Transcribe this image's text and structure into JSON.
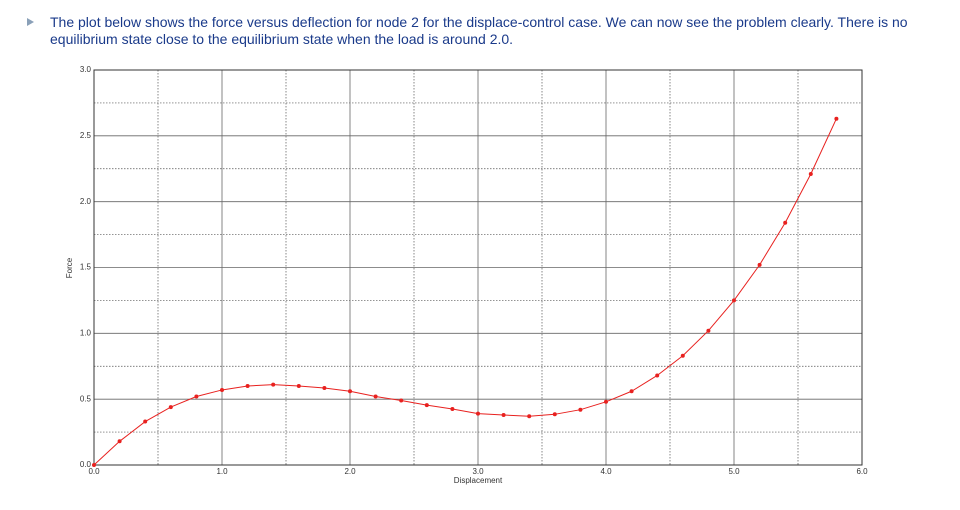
{
  "text": "The plot below shows the force versus deflection for node 2 for the displace-control case. We can now see the problem clearly. There is no equilibrium state close to the equilibrium state when the load is around 2.0.",
  "chart_data": {
    "type": "line",
    "xlabel": "Displacement",
    "ylabel": "Force",
    "x": [
      0,
      0.2,
      0.4,
      0.6,
      0.8,
      1.0,
      1.2,
      1.4,
      1.6,
      1.8,
      2.0,
      2.2,
      2.4,
      2.6,
      2.8,
      3.0,
      3.2,
      3.4,
      3.6,
      3.8,
      4.0,
      4.2,
      4.4,
      4.6,
      4.8,
      5.0,
      5.2,
      5.4,
      5.6,
      5.8
    ],
    "series": [
      {
        "color": "#e8211f",
        "values": [
          0,
          0.18,
          0.33,
          0.44,
          0.52,
          0.57,
          0.6,
          0.61,
          0.6,
          0.585,
          0.56,
          0.52,
          0.49,
          0.455,
          0.425,
          0.39,
          0.38,
          0.37,
          0.385,
          0.42,
          0.48,
          0.56,
          0.68,
          0.83,
          1.02,
          1.25,
          1.52,
          1.84,
          2.21,
          2.63
        ]
      }
    ],
    "xlim": [
      0,
      6
    ],
    "ylim": [
      0,
      3
    ],
    "xticks": [
      {
        "value": 0,
        "label": "0.0"
      },
      {
        "value": 1,
        "label": "1.0"
      },
      {
        "value": 2,
        "label": "2.0"
      },
      {
        "value": 3,
        "label": "3.0"
      },
      {
        "value": 4,
        "label": "4.0"
      },
      {
        "value": 5,
        "label": "5.0"
      },
      {
        "value": 6,
        "label": "6.0"
      }
    ],
    "yticks": [
      {
        "value": 0,
        "label": "0.0"
      },
      {
        "value": 0.5,
        "label": "0.5"
      },
      {
        "value": 1,
        "label": "1.0"
      },
      {
        "value": 1.5,
        "label": "1.5"
      },
      {
        "value": 2,
        "label": "2.0"
      },
      {
        "value": 2.5,
        "label": "2.5"
      },
      {
        "value": 3,
        "label": "3.0"
      }
    ],
    "minor_xticks": [
      0.5,
      1.5,
      2.5,
      3.5,
      4.5,
      5.5
    ],
    "minor_yticks": [
      0.25,
      0.75,
      1.25,
      1.75,
      2.25,
      2.75
    ],
    "grid": true
  }
}
